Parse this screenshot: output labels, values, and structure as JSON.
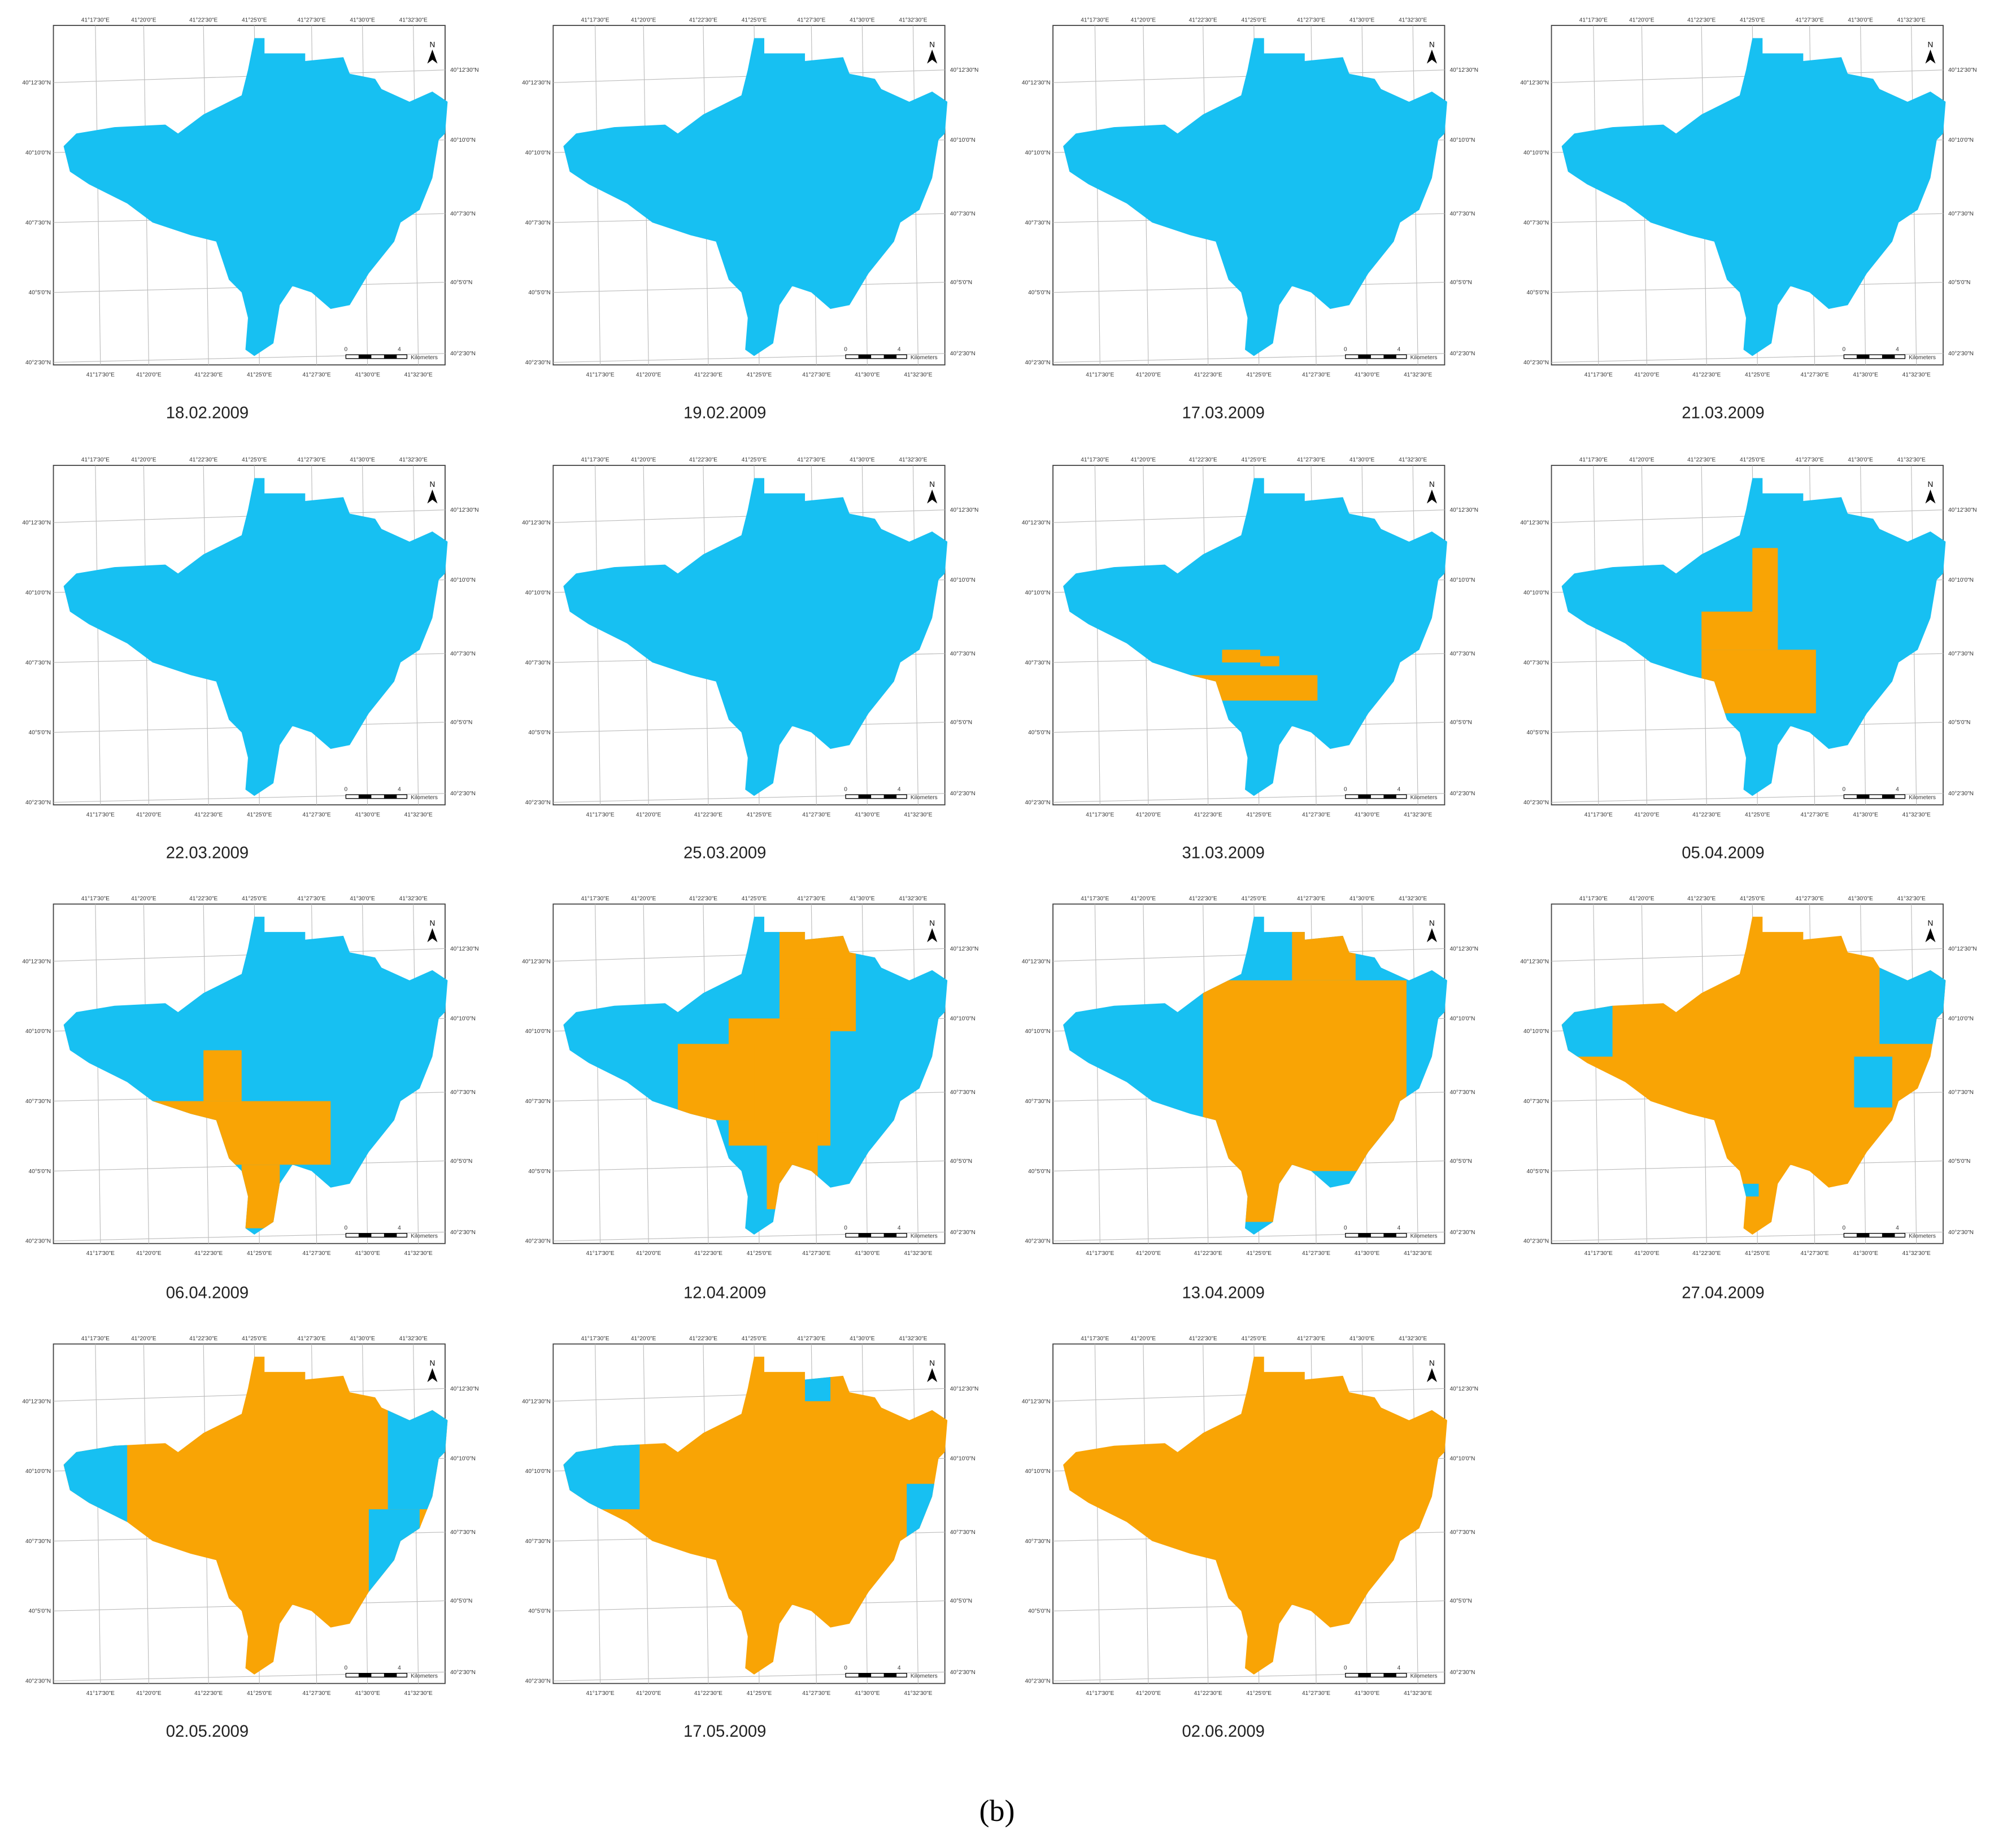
{
  "panels": [
    {
      "date": "18.02.2009"
    },
    {
      "date": "19.02.2009"
    },
    {
      "date": "17.03.2009"
    },
    {
      "date": "21.03.2009"
    },
    {
      "date": "22.03.2009"
    },
    {
      "date": "25.03.2009"
    },
    {
      "date": "31.03.2009"
    },
    {
      "date": "05.04.2009"
    },
    {
      "date": "06.04.2009"
    },
    {
      "date": "12.04.2009"
    },
    {
      "date": "13.04.2009"
    },
    {
      "date": "27.04.2009"
    },
    {
      "date": "02.05.2009"
    },
    {
      "date": "17.05.2009"
    },
    {
      "date": "02.06.2009"
    }
  ],
  "map_labels": {
    "lon": [
      "41°17'30\"E",
      "41°20'0\"E",
      "41°22'30\"E",
      "41°25'0\"E",
      "41°27'30\"E",
      "41°30'0\"E",
      "41°32'30\"E"
    ],
    "lat": [
      "40°12'30\"N",
      "40°10'0\"N",
      "40°7'30\"N",
      "40°5'0\"N",
      "40°2'30\"N"
    ],
    "north": "N",
    "scale_start": "0",
    "scale_end": "4",
    "scale_unit": "Kilometers"
  },
  "caption": "(b)"
}
